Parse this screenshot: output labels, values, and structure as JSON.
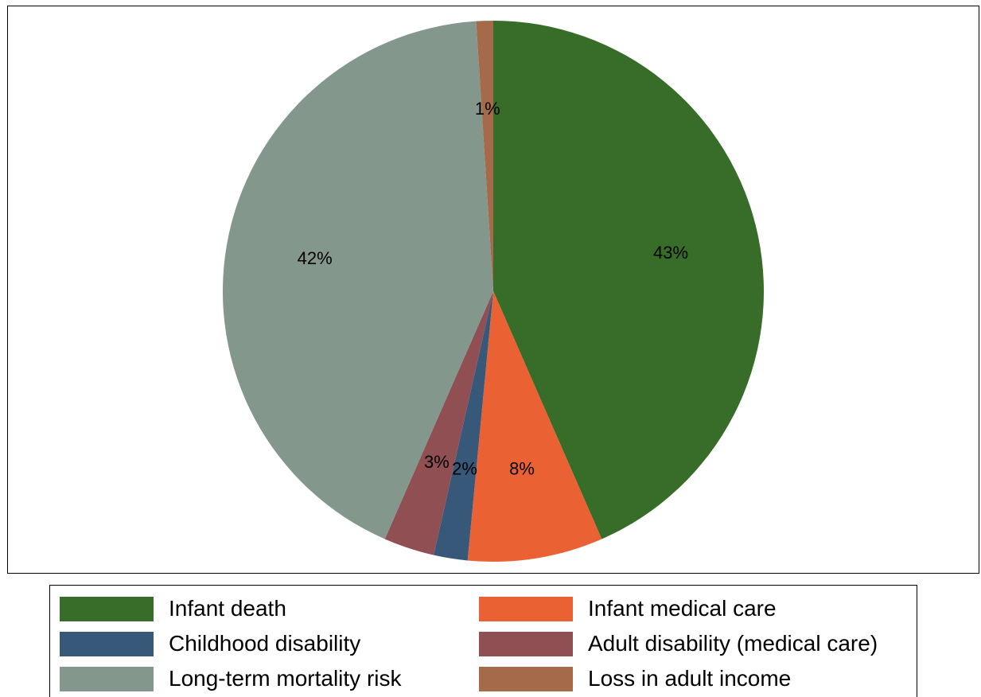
{
  "chart_data": {
    "type": "pie",
    "start": "12 o'clock",
    "direction": "clockwise",
    "slices": [
      {
        "label": "Infant death",
        "value": 43,
        "value_label": "43%",
        "color": "#376d28"
      },
      {
        "label": "Infant medical care",
        "value": 8,
        "value_label": "8%",
        "color": "#ea6234"
      },
      {
        "label": "Childhood disability",
        "value": 2,
        "value_label": "2%",
        "color": "#38587a"
      },
      {
        "label": "Adult disability (medical care)",
        "value": 3,
        "value_label": "3%",
        "color": "#8f4f53"
      },
      {
        "label": "Long-term mortality risk",
        "value": 42,
        "value_label": "42%",
        "color": "#83978d"
      },
      {
        "label": "Loss in adult income",
        "value": 1,
        "value_label": "1%",
        "color": "#a56a4a"
      }
    ],
    "legend": {
      "placement": "bottom",
      "columns": 2,
      "entries": [
        "Infant death",
        "Infant medical care",
        "Childhood disability",
        "Adult disability (medical care)",
        "Long-term mortality risk",
        "Loss in adult income"
      ]
    }
  }
}
